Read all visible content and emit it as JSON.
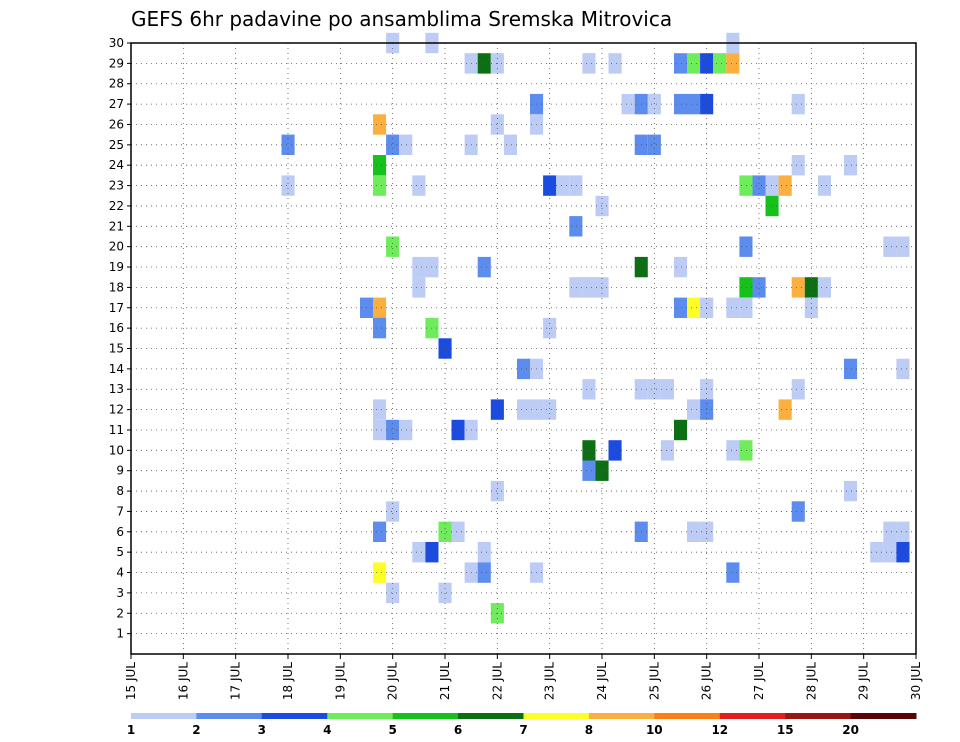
{
  "chart_data": {
    "type": "heatmap",
    "title": "GEFS 6hr padavine po ansamblima Sremska Mitrovica",
    "x_tick_labels": [
      "15 JUL",
      "16 JUL",
      "17 JUL",
      "18 JUL",
      "19 JUL",
      "20 JUL",
      "21 JUL",
      "22 JUL",
      "23 JUL",
      "24 JUL",
      "25 JUL",
      "26 JUL",
      "27 JUL",
      "28 JUL",
      "29 JUL",
      "30 JUL"
    ],
    "x_range": [
      15,
      30
    ],
    "y_tick_labels": [
      "1",
      "2",
      "3",
      "4",
      "5",
      "6",
      "7",
      "8",
      "9",
      "10",
      "11",
      "12",
      "13",
      "14",
      "15",
      "16",
      "17",
      "18",
      "19",
      "20",
      "21",
      "22",
      "23",
      "24",
      "25",
      "26",
      "27",
      "28",
      "29",
      "30"
    ],
    "y_range": [
      0,
      30
    ],
    "grid": true,
    "colorbar": {
      "levels": [
        "1",
        "2",
        "3",
        "4",
        "5",
        "6",
        "7",
        "8",
        "10",
        "12",
        "15",
        "20"
      ],
      "colors": [
        "#bcccf4",
        "#5c8ced",
        "#1b4bdf",
        "#6fec5c",
        "#16c21a",
        "#0d6f14",
        "#fefd25",
        "#fbaf3e",
        "#fe7d14",
        "#e01e1e",
        "#9b1414",
        "#5a0505"
      ]
    },
    "cell_width_days": 0.25,
    "cells": [
      {
        "day": 20.0,
        "member": 30,
        "level": 1
      },
      {
        "day": 20.75,
        "member": 30,
        "level": 1
      },
      {
        "day": 26.5,
        "member": 30,
        "level": 1
      },
      {
        "day": 21.5,
        "member": 29,
        "level": 1
      },
      {
        "day": 21.75,
        "member": 29,
        "level": 6
      },
      {
        "day": 22.0,
        "member": 29,
        "level": 1
      },
      {
        "day": 23.75,
        "member": 29,
        "level": 1
      },
      {
        "day": 24.25,
        "member": 29,
        "level": 1
      },
      {
        "day": 25.5,
        "member": 29,
        "level": 2
      },
      {
        "day": 25.75,
        "member": 29,
        "level": 4
      },
      {
        "day": 26.0,
        "member": 29,
        "level": 3
      },
      {
        "day": 26.25,
        "member": 29,
        "level": 4
      },
      {
        "day": 26.5,
        "member": 29,
        "level": 8
      },
      {
        "day": 22.75,
        "member": 27,
        "level": 2
      },
      {
        "day": 24.5,
        "member": 27,
        "level": 1
      },
      {
        "day": 24.75,
        "member": 27,
        "level": 2
      },
      {
        "day": 25.0,
        "member": 27,
        "level": 1
      },
      {
        "day": 25.5,
        "member": 27,
        "level": 2
      },
      {
        "day": 25.75,
        "member": 27,
        "level": 2
      },
      {
        "day": 26.0,
        "member": 27,
        "level": 3
      },
      {
        "day": 27.75,
        "member": 27,
        "level": 1
      },
      {
        "day": 19.75,
        "member": 26,
        "level": 8
      },
      {
        "day": 22.0,
        "member": 26,
        "level": 1
      },
      {
        "day": 22.75,
        "member": 26,
        "level": 1
      },
      {
        "day": 18.0,
        "member": 25,
        "level": 2
      },
      {
        "day": 20.0,
        "member": 25,
        "level": 2
      },
      {
        "day": 20.25,
        "member": 25,
        "level": 1
      },
      {
        "day": 21.5,
        "member": 25,
        "level": 1
      },
      {
        "day": 22.25,
        "member": 25,
        "level": 1
      },
      {
        "day": 24.75,
        "member": 25,
        "level": 2
      },
      {
        "day": 25.0,
        "member": 25,
        "level": 2
      },
      {
        "day": 19.75,
        "member": 24,
        "level": 5
      },
      {
        "day": 27.75,
        "member": 24,
        "level": 1
      },
      {
        "day": 28.75,
        "member": 24,
        "level": 1
      },
      {
        "day": 18.0,
        "member": 23,
        "level": 1
      },
      {
        "day": 19.75,
        "member": 23,
        "level": 4
      },
      {
        "day": 20.5,
        "member": 23,
        "level": 1
      },
      {
        "day": 23.0,
        "member": 23,
        "level": 3
      },
      {
        "day": 23.25,
        "member": 23,
        "level": 1
      },
      {
        "day": 23.5,
        "member": 23,
        "level": 1
      },
      {
        "day": 26.75,
        "member": 23,
        "level": 4
      },
      {
        "day": 27.0,
        "member": 23,
        "level": 2
      },
      {
        "day": 27.25,
        "member": 23,
        "level": 1
      },
      {
        "day": 27.5,
        "member": 23,
        "level": 8
      },
      {
        "day": 28.25,
        "member": 23,
        "level": 1
      },
      {
        "day": 27.25,
        "member": 22,
        "level": 5
      },
      {
        "day": 24.0,
        "member": 22,
        "level": 1
      },
      {
        "day": 23.5,
        "member": 21,
        "level": 2
      },
      {
        "day": 20.0,
        "member": 20,
        "level": 4
      },
      {
        "day": 26.75,
        "member": 20,
        "level": 2
      },
      {
        "day": 29.5,
        "member": 20,
        "level": 1
      },
      {
        "day": 29.75,
        "member": 20,
        "level": 1
      },
      {
        "day": 20.5,
        "member": 19,
        "level": 1
      },
      {
        "day": 20.75,
        "member": 19,
        "level": 1
      },
      {
        "day": 21.75,
        "member": 19,
        "level": 2
      },
      {
        "day": 24.75,
        "member": 19,
        "level": 6
      },
      {
        "day": 25.5,
        "member": 19,
        "level": 1
      },
      {
        "day": 20.5,
        "member": 18,
        "level": 1
      },
      {
        "day": 23.5,
        "member": 18,
        "level": 1
      },
      {
        "day": 23.75,
        "member": 18,
        "level": 1
      },
      {
        "day": 24.0,
        "member": 18,
        "level": 1
      },
      {
        "day": 26.75,
        "member": 18,
        "level": 5
      },
      {
        "day": 27.0,
        "member": 18,
        "level": 2
      },
      {
        "day": 27.75,
        "member": 18,
        "level": 8
      },
      {
        "day": 28.0,
        "member": 18,
        "level": 6
      },
      {
        "day": 28.25,
        "member": 18,
        "level": 1
      },
      {
        "day": 19.5,
        "member": 17,
        "level": 2
      },
      {
        "day": 19.75,
        "member": 17,
        "level": 8
      },
      {
        "day": 25.5,
        "member": 17,
        "level": 2
      },
      {
        "day": 25.75,
        "member": 17,
        "level": 7
      },
      {
        "day": 26.0,
        "member": 17,
        "level": 1
      },
      {
        "day": 26.5,
        "member": 17,
        "level": 1
      },
      {
        "day": 26.75,
        "member": 17,
        "level": 1
      },
      {
        "day": 28.0,
        "member": 17,
        "level": 1
      },
      {
        "day": 19.75,
        "member": 16,
        "level": 2
      },
      {
        "day": 20.75,
        "member": 16,
        "level": 4
      },
      {
        "day": 23.0,
        "member": 16,
        "level": 1
      },
      {
        "day": 21.0,
        "member": 15,
        "level": 3
      },
      {
        "day": 22.5,
        "member": 14,
        "level": 2
      },
      {
        "day": 22.75,
        "member": 14,
        "level": 1
      },
      {
        "day": 28.75,
        "member": 14,
        "level": 2
      },
      {
        "day": 29.75,
        "member": 14,
        "level": 1
      },
      {
        "day": 23.75,
        "member": 13,
        "level": 1
      },
      {
        "day": 24.75,
        "member": 13,
        "level": 1
      },
      {
        "day": 25.0,
        "member": 13,
        "level": 1
      },
      {
        "day": 25.25,
        "member": 13,
        "level": 1
      },
      {
        "day": 26.0,
        "member": 13,
        "level": 1
      },
      {
        "day": 27.75,
        "member": 13,
        "level": 1
      },
      {
        "day": 19.75,
        "member": 12,
        "level": 1
      },
      {
        "day": 22.0,
        "member": 12,
        "level": 3
      },
      {
        "day": 22.5,
        "member": 12,
        "level": 1
      },
      {
        "day": 22.75,
        "member": 12,
        "level": 1
      },
      {
        "day": 23.0,
        "member": 12,
        "level": 1
      },
      {
        "day": 25.75,
        "member": 12,
        "level": 1
      },
      {
        "day": 26.0,
        "member": 12,
        "level": 2
      },
      {
        "day": 27.5,
        "member": 12,
        "level": 8
      },
      {
        "day": 19.75,
        "member": 11,
        "level": 1
      },
      {
        "day": 20.0,
        "member": 11,
        "level": 2
      },
      {
        "day": 20.25,
        "member": 11,
        "level": 1
      },
      {
        "day": 21.25,
        "member": 11,
        "level": 3
      },
      {
        "day": 21.5,
        "member": 11,
        "level": 1
      },
      {
        "day": 25.5,
        "member": 11,
        "level": 6
      },
      {
        "day": 23.75,
        "member": 10,
        "level": 6
      },
      {
        "day": 24.25,
        "member": 10,
        "level": 3
      },
      {
        "day": 25.25,
        "member": 10,
        "level": 1
      },
      {
        "day": 26.5,
        "member": 10,
        "level": 1
      },
      {
        "day": 26.75,
        "member": 10,
        "level": 4
      },
      {
        "day": 23.75,
        "member": 9,
        "level": 2
      },
      {
        "day": 24.0,
        "member": 9,
        "level": 6
      },
      {
        "day": 22.0,
        "member": 8,
        "level": 1
      },
      {
        "day": 28.75,
        "member": 8,
        "level": 1
      },
      {
        "day": 20.0,
        "member": 7,
        "level": 1
      },
      {
        "day": 27.75,
        "member": 7,
        "level": 2
      },
      {
        "day": 19.75,
        "member": 6,
        "level": 2
      },
      {
        "day": 21.0,
        "member": 6,
        "level": 4
      },
      {
        "day": 21.25,
        "member": 6,
        "level": 1
      },
      {
        "day": 24.75,
        "member": 6,
        "level": 2
      },
      {
        "day": 25.75,
        "member": 6,
        "level": 1
      },
      {
        "day": 26.0,
        "member": 6,
        "level": 1
      },
      {
        "day": 29.5,
        "member": 6,
        "level": 1
      },
      {
        "day": 29.75,
        "member": 6,
        "level": 1
      },
      {
        "day": 20.5,
        "member": 5,
        "level": 1
      },
      {
        "day": 20.75,
        "member": 5,
        "level": 3
      },
      {
        "day": 21.75,
        "member": 5,
        "level": 1
      },
      {
        "day": 29.25,
        "member": 5,
        "level": 1
      },
      {
        "day": 29.5,
        "member": 5,
        "level": 1
      },
      {
        "day": 29.75,
        "member": 5,
        "level": 3
      },
      {
        "day": 19.75,
        "member": 4,
        "level": 7
      },
      {
        "day": 21.5,
        "member": 4,
        "level": 1
      },
      {
        "day": 21.75,
        "member": 4,
        "level": 2
      },
      {
        "day": 22.75,
        "member": 4,
        "level": 1
      },
      {
        "day": 26.5,
        "member": 4,
        "level": 2
      },
      {
        "day": 20.0,
        "member": 3,
        "level": 1
      },
      {
        "day": 21.0,
        "member": 3,
        "level": 1
      },
      {
        "day": 22.0,
        "member": 2,
        "level": 4
      }
    ]
  }
}
